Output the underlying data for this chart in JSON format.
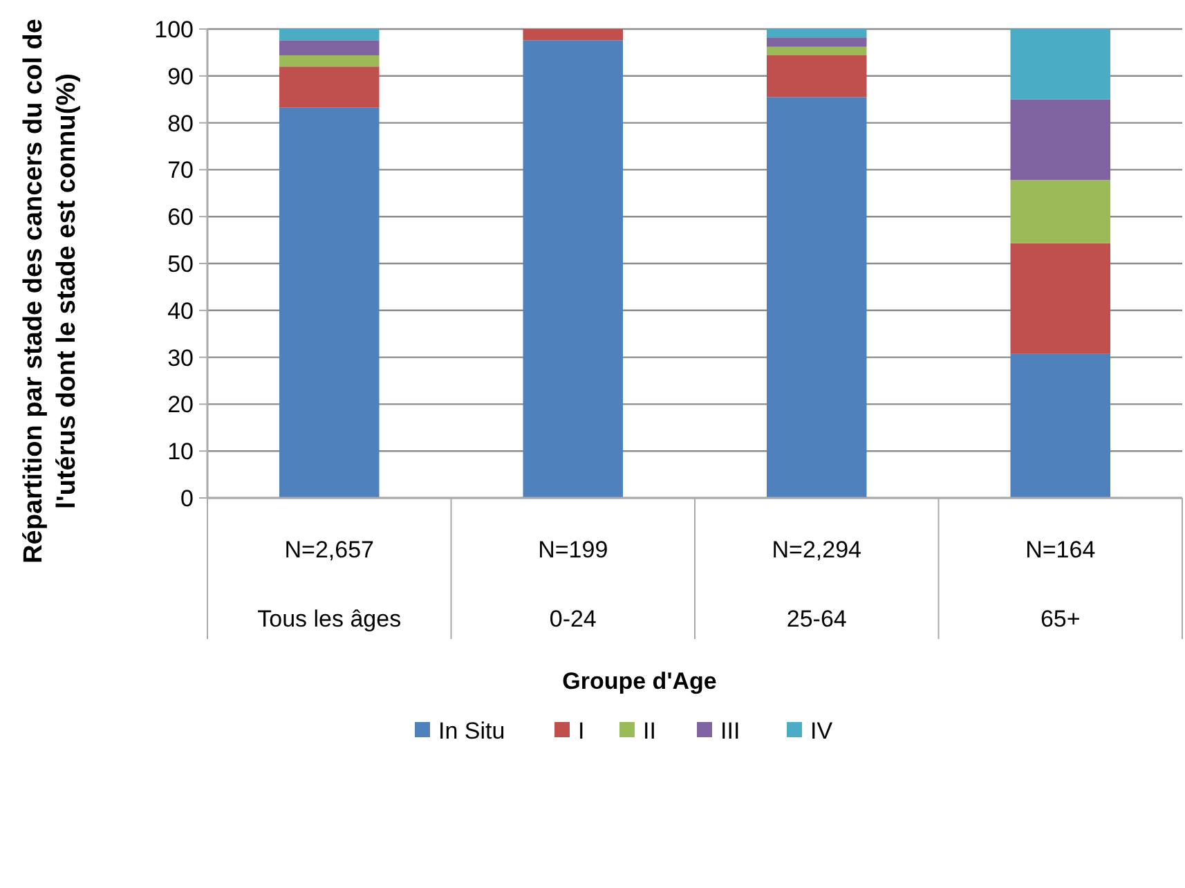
{
  "chart_data": {
    "type": "bar",
    "stacked": true,
    "xlabel": "Groupe d'Age",
    "ylabel": "Répartition par stade des cancers du col de l'utérus dont le stade est connu(%)",
    "categories": [
      "Tous les âges",
      "0-24",
      "25-64",
      "65+"
    ],
    "series": [
      {
        "name": "In Situ",
        "color": "#4f81bd",
        "values": [
          83.3,
          97.6,
          85.5,
          30.7
        ]
      },
      {
        "name": "I",
        "color": "#c0504d",
        "values": [
          8.7,
          2.4,
          8.9,
          23.6
        ]
      },
      {
        "name": "II",
        "color": "#9bbb59",
        "values": [
          2.4,
          0,
          1.8,
          13.5
        ]
      },
      {
        "name": "III",
        "color": "#8064a2",
        "values": [
          3.2,
          0,
          2.0,
          17.2
        ]
      },
      {
        "name": "IV",
        "color": "#4bacc6",
        "values": [
          2.4,
          0,
          1.8,
          15.0
        ]
      }
    ],
    "annotations": [
      "N=2,657",
      "N=199",
      "N=2,294",
      "N=164"
    ],
    "ylim": [
      0,
      100
    ],
    "yticks": [
      0,
      10,
      20,
      30,
      40,
      50,
      60,
      70,
      80,
      90,
      100
    ],
    "grid": "y",
    "legend": "bottom"
  }
}
